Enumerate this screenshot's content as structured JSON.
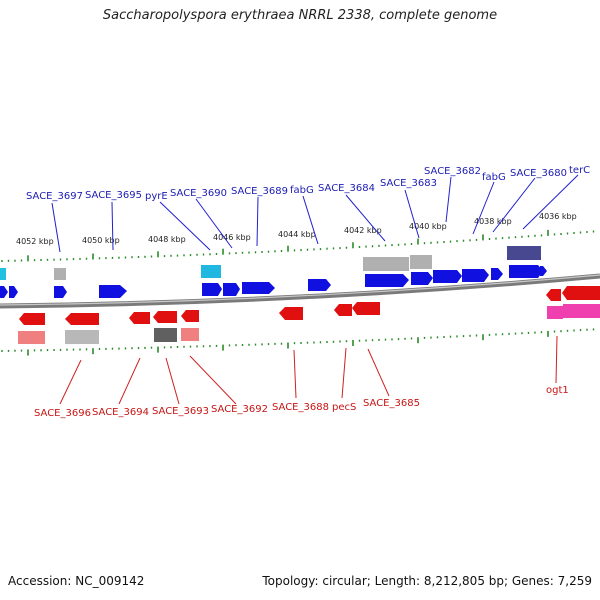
{
  "title": "Saccharopolyspora erythraea NRRL 2338, complete genome",
  "footer": {
    "accession": "Accession: NC_009142",
    "topology": "Topology: circular; Length: 8,212,805 bp; Genes: 7,259"
  },
  "colors": {
    "forward": "#1010e0",
    "reverse": "#e01010",
    "line_up": "#2020d0",
    "line_dn": "#d02020",
    "tick": "#2a8a2a"
  },
  "kbp_labels": [
    "4052 kbp",
    "4050 kbp",
    "4048 kbp",
    "4046 kbp",
    "4044 kbp",
    "4042 kbp",
    "4040 kbp",
    "4038 kbp",
    "4036 kbp"
  ],
  "upper_labels": [
    "SACE_3697",
    "SACE_3695",
    "pyrE",
    "SACE_3690",
    "SACE_3689",
    "fabG",
    "SACE_3684",
    "SACE_3683",
    "SACE_3682",
    "fabG",
    "SACE_3680",
    "terC"
  ],
  "lower_labels": [
    "SACE_3696",
    "SACE_3694",
    "SACE_3693",
    "SACE_3692",
    "SACE_3688",
    "pecS",
    "SACE_3685",
    "ogt1"
  ]
}
